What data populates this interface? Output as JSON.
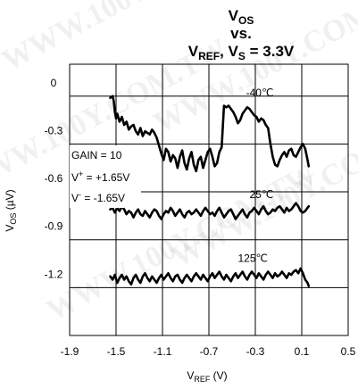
{
  "chart_data": {
    "type": "line",
    "title": {
      "line1_main": "V",
      "line1_sub": "OS",
      "line2": "vs.",
      "line3_main": "V",
      "line3_sub": "REF",
      "line3_rest": ", V",
      "line3_sub2": "S",
      "line3_tail": " = 3.3V"
    },
    "xlabel": {
      "main": "V",
      "sub": "REF",
      "rest": " (V)"
    },
    "ylabel": {
      "main": "V",
      "sub": "OS",
      "rest": " (µV)"
    },
    "xlim": [
      -1.9,
      0.5
    ],
    "ylim": [
      -1.5,
      0.2
    ],
    "x_ticks": [
      "-1.9",
      "-1.5",
      "-1.1",
      "-0.7",
      "-0.3",
      "0.1",
      "0.5"
    ],
    "y_ticks": [
      "0",
      "-0.3",
      "-0.6",
      "-0.9",
      "-1.2"
    ],
    "grid": true,
    "conditions": [
      {
        "main": "GAIN = 10",
        "sup": "",
        "rest": ""
      },
      {
        "main": "V",
        "sup": "+",
        "rest": " = +1.65V"
      },
      {
        "main": "V",
        "sup": "-",
        "rest": " = -1.65V"
      }
    ],
    "series": [
      {
        "name": "-40℃",
        "label_x": -0.38,
        "label_y": 0.0,
        "x": [
          -1.55,
          -1.53,
          -1.52,
          -1.51,
          -1.5,
          -1.49,
          -1.47,
          -1.45,
          -1.43,
          -1.41,
          -1.39,
          -1.37,
          -1.35,
          -1.33,
          -1.31,
          -1.29,
          -1.27,
          -1.25,
          -1.23,
          -1.21,
          -1.19,
          -1.17,
          -1.15,
          -1.13,
          -1.11,
          -1.09,
          -1.07,
          -1.05,
          -1.03,
          -1.01,
          -0.99,
          -0.97,
          -0.95,
          -0.93,
          -0.91,
          -0.89,
          -0.87,
          -0.85,
          -0.83,
          -0.81,
          -0.79,
          -0.77,
          -0.75,
          -0.73,
          -0.71,
          -0.69,
          -0.67,
          -0.65,
          -0.63,
          -0.61,
          -0.59,
          -0.57,
          -0.55,
          -0.53,
          -0.51,
          -0.49,
          -0.47,
          -0.45,
          -0.43,
          -0.41,
          -0.39,
          -0.37,
          -0.35,
          -0.33,
          -0.31,
          -0.29,
          -0.27,
          -0.25,
          -0.23,
          -0.21,
          -0.19,
          -0.17,
          -0.15,
          -0.13,
          -0.11,
          -0.09,
          -0.07,
          -0.05,
          -0.03,
          -0.01,
          0.01,
          0.03,
          0.05,
          0.07,
          0.09,
          0.11,
          0.13,
          0.15,
          0.16
        ],
        "y": [
          -0.01,
          0.0,
          -0.03,
          -0.1,
          -0.14,
          -0.11,
          -0.16,
          -0.13,
          -0.18,
          -0.16,
          -0.21,
          -0.19,
          -0.18,
          -0.22,
          -0.24,
          -0.2,
          -0.25,
          -0.22,
          -0.23,
          -0.24,
          -0.21,
          -0.23,
          -0.26,
          -0.31,
          -0.36,
          -0.4,
          -0.33,
          -0.35,
          -0.41,
          -0.37,
          -0.39,
          -0.45,
          -0.38,
          -0.34,
          -0.42,
          -0.46,
          -0.39,
          -0.35,
          -0.43,
          -0.47,
          -0.4,
          -0.38,
          -0.45,
          -0.4,
          -0.35,
          -0.33,
          -0.38,
          -0.44,
          -0.42,
          -0.35,
          -0.32,
          -0.06,
          -0.07,
          -0.06,
          -0.08,
          -0.1,
          -0.13,
          -0.17,
          -0.15,
          -0.11,
          -0.09,
          -0.07,
          -0.08,
          -0.1,
          -0.12,
          -0.13,
          -0.16,
          -0.14,
          -0.15,
          -0.18,
          -0.2,
          -0.3,
          -0.38,
          -0.43,
          -0.44,
          -0.4,
          -0.37,
          -0.35,
          -0.38,
          -0.34,
          -0.33,
          -0.37,
          -0.38,
          -0.35,
          -0.32,
          -0.3,
          -0.33,
          -0.4,
          -0.44
        ]
      },
      {
        "name": "25℃",
        "label_x": -0.35,
        "label_y": -0.64,
        "x": [
          -1.55,
          -1.53,
          -1.51,
          -1.49,
          -1.47,
          -1.45,
          -1.43,
          -1.41,
          -1.39,
          -1.37,
          -1.35,
          -1.33,
          -1.31,
          -1.29,
          -1.27,
          -1.25,
          -1.23,
          -1.21,
          -1.19,
          -1.17,
          -1.15,
          -1.13,
          -1.11,
          -1.09,
          -1.07,
          -1.05,
          -1.03,
          -1.01,
          -0.99,
          -0.97,
          -0.95,
          -0.93,
          -0.91,
          -0.89,
          -0.87,
          -0.85,
          -0.83,
          -0.81,
          -0.79,
          -0.77,
          -0.75,
          -0.73,
          -0.71,
          -0.69,
          -0.67,
          -0.65,
          -0.63,
          -0.61,
          -0.59,
          -0.57,
          -0.55,
          -0.53,
          -0.51,
          -0.49,
          -0.47,
          -0.45,
          -0.43,
          -0.41,
          -0.39,
          -0.37,
          -0.35,
          -0.33,
          -0.31,
          -0.29,
          -0.27,
          -0.25,
          -0.23,
          -0.21,
          -0.19,
          -0.17,
          -0.15,
          -0.13,
          -0.11,
          -0.09,
          -0.07,
          -0.05,
          -0.03,
          -0.01,
          0.01,
          0.03,
          0.05,
          0.07,
          0.09,
          0.11,
          0.13,
          0.15,
          0.16
        ],
        "y": [
          -0.71,
          -0.7,
          -0.73,
          -0.7,
          -0.72,
          -0.69,
          -0.71,
          -0.74,
          -0.72,
          -0.73,
          -0.76,
          -0.73,
          -0.71,
          -0.74,
          -0.75,
          -0.72,
          -0.74,
          -0.76,
          -0.73,
          -0.71,
          -0.72,
          -0.75,
          -0.77,
          -0.74,
          -0.72,
          -0.73,
          -0.7,
          -0.72,
          -0.75,
          -0.73,
          -0.71,
          -0.74,
          -0.76,
          -0.73,
          -0.72,
          -0.74,
          -0.73,
          -0.71,
          -0.73,
          -0.75,
          -0.72,
          -0.7,
          -0.72,
          -0.74,
          -0.73,
          -0.75,
          -0.72,
          -0.7,
          -0.73,
          -0.76,
          -0.74,
          -0.72,
          -0.71,
          -0.74,
          -0.77,
          -0.75,
          -0.73,
          -0.71,
          -0.74,
          -0.76,
          -0.73,
          -0.72,
          -0.7,
          -0.72,
          -0.74,
          -0.71,
          -0.69,
          -0.72,
          -0.74,
          -0.73,
          -0.71,
          -0.72,
          -0.7,
          -0.69,
          -0.71,
          -0.73,
          -0.7,
          -0.72,
          -0.71,
          -0.69,
          -0.67,
          -0.69,
          -0.72,
          -0.73,
          -0.72,
          -0.7,
          -0.69
        ]
      },
      {
        "name": "125℃",
        "label_x": -0.45,
        "label_y": -1.04,
        "x": [
          -1.55,
          -1.53,
          -1.51,
          -1.49,
          -1.47,
          -1.45,
          -1.43,
          -1.41,
          -1.39,
          -1.37,
          -1.35,
          -1.33,
          -1.31,
          -1.29,
          -1.27,
          -1.25,
          -1.23,
          -1.21,
          -1.19,
          -1.17,
          -1.15,
          -1.13,
          -1.11,
          -1.09,
          -1.07,
          -1.05,
          -1.03,
          -1.01,
          -0.99,
          -0.97,
          -0.95,
          -0.93,
          -0.91,
          -0.89,
          -0.87,
          -0.85,
          -0.83,
          -0.81,
          -0.79,
          -0.77,
          -0.75,
          -0.73,
          -0.71,
          -0.69,
          -0.67,
          -0.65,
          -0.63,
          -0.61,
          -0.59,
          -0.57,
          -0.55,
          -0.53,
          -0.51,
          -0.49,
          -0.47,
          -0.45,
          -0.43,
          -0.41,
          -0.39,
          -0.37,
          -0.35,
          -0.33,
          -0.31,
          -0.29,
          -0.27,
          -0.25,
          -0.23,
          -0.21,
          -0.19,
          -0.17,
          -0.15,
          -0.13,
          -0.11,
          -0.09,
          -0.07,
          -0.05,
          -0.03,
          -0.01,
          0.01,
          0.03,
          0.05,
          0.07,
          0.09,
          0.11,
          0.13,
          0.15,
          0.16
        ],
        "y": [
          -1.13,
          -1.15,
          -1.12,
          -1.17,
          -1.14,
          -1.12,
          -1.15,
          -1.13,
          -1.16,
          -1.18,
          -1.14,
          -1.12,
          -1.15,
          -1.17,
          -1.13,
          -1.11,
          -1.14,
          -1.16,
          -1.13,
          -1.15,
          -1.17,
          -1.14,
          -1.12,
          -1.15,
          -1.13,
          -1.11,
          -1.14,
          -1.16,
          -1.13,
          -1.12,
          -1.15,
          -1.17,
          -1.14,
          -1.12,
          -1.14,
          -1.16,
          -1.13,
          -1.11,
          -1.13,
          -1.15,
          -1.12,
          -1.14,
          -1.16,
          -1.13,
          -1.11,
          -1.14,
          -1.12,
          -1.1,
          -1.13,
          -1.15,
          -1.12,
          -1.14,
          -1.16,
          -1.13,
          -1.11,
          -1.14,
          -1.12,
          -1.1,
          -1.13,
          -1.15,
          -1.12,
          -1.1,
          -1.12,
          -1.14,
          -1.11,
          -1.13,
          -1.15,
          -1.12,
          -1.1,
          -1.12,
          -1.14,
          -1.11,
          -1.13,
          -1.12,
          -1.1,
          -1.12,
          -1.14,
          -1.11,
          -1.12,
          -1.1,
          -1.09,
          -1.11,
          -1.08,
          -1.11,
          -1.15,
          -1.17,
          -1.19
        ]
      }
    ]
  },
  "watermark": "WWW.100Y.COM.TW"
}
